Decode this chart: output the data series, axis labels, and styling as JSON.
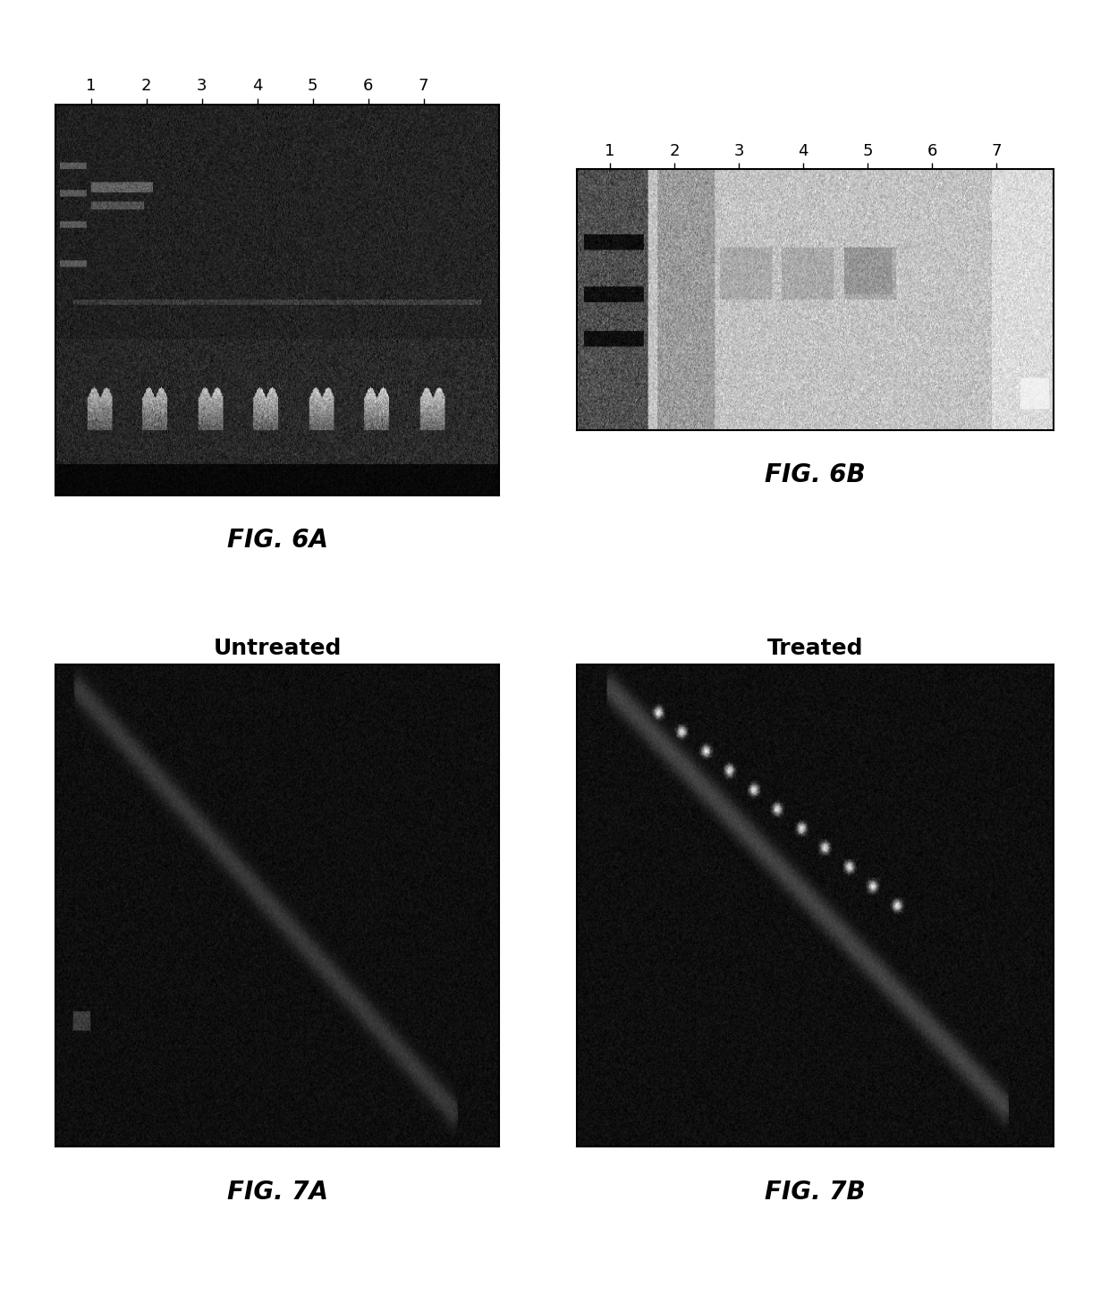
{
  "fig_labels": [
    "FIG. 6A",
    "FIG. 6B",
    "FIG. 7A",
    "FIG. 7B"
  ],
  "fig7a_label": "Untreated",
  "fig7b_label": "Treated",
  "lane_labels": [
    "1",
    "2",
    "3",
    "4",
    "5",
    "6",
    "7"
  ],
  "background_color": "#ffffff",
  "lane_fontsize": 13,
  "fig_label_fontsize": 20,
  "title_fontsize": 18
}
